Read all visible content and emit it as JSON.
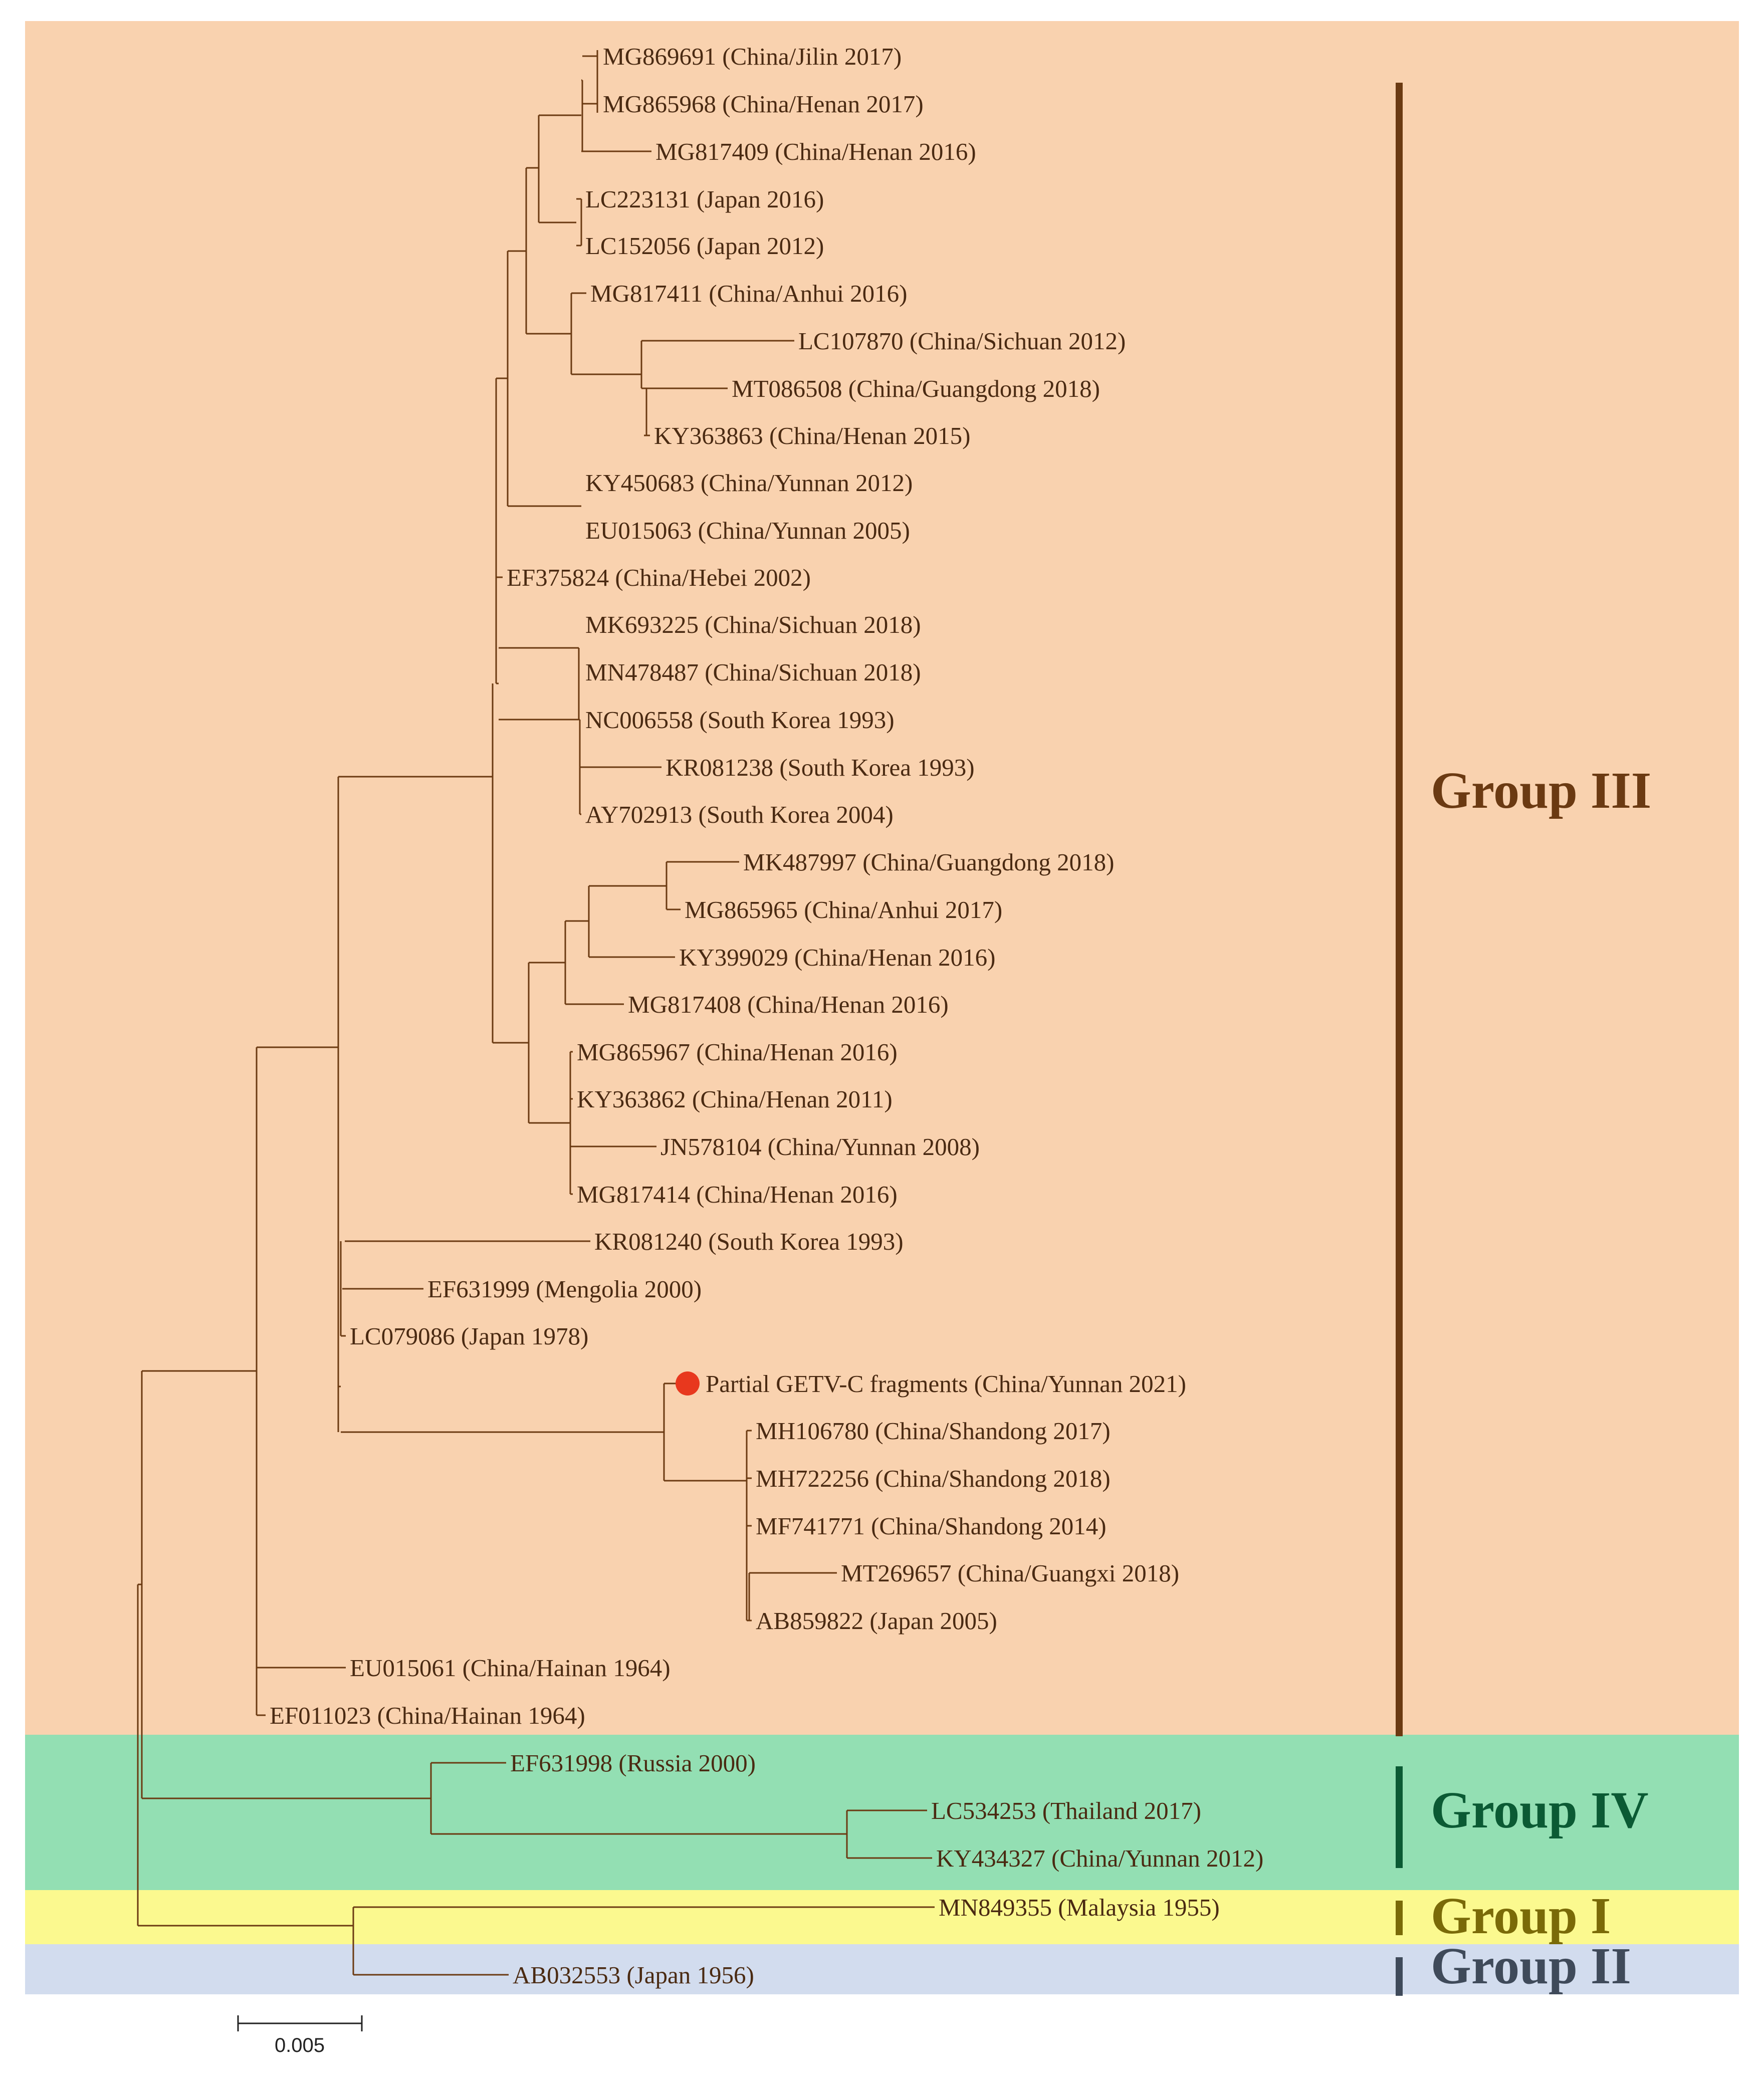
{
  "colors": {
    "group3_bg": "#f9d2af",
    "group4_bg": "#93dfb3",
    "group1_bg": "#fbf98f",
    "group2_bg": "#d2dcee",
    "group3_line": "#6b3a12",
    "group4_line": "#0b5a34",
    "group1_line": "#7a6a08",
    "group2_line": "#3f4a5a",
    "tree_line": "#6b3a12",
    "marker": "#e8381e"
  },
  "tree": {
    "leaves": [
      "MG869691 (China/Jilin 2017)",
      "MG865968 (China/Henan 2017)",
      "MG817409 (China/Henan 2016)",
      "LC223131 (Japan 2016)",
      "LC152056 (Japan 2012)",
      "MG817411 (China/Anhui 2016)",
      "LC107870 (China/Sichuan 2012)",
      "MT086508 (China/Guangdong 2018)",
      "KY363863 (China/Henan 2015)",
      "KY450683 (China/Yunnan 2012)",
      "EU015063 (China/Yunnan 2005)",
      "EF375824 (China/Hebei 2002)",
      "MK693225 (China/Sichuan 2018)",
      "MN478487 (China/Sichuan 2018)",
      "NC006558 (South Korea 1993)",
      "KR081238 (South Korea 1993)",
      "AY702913 (South Korea 2004)",
      "MK487997 (China/Guangdong 2018)",
      "MG865965 (China/Anhui 2017)",
      "KY399029 (China/Henan 2016)",
      "MG817408 (China/Henan 2016)",
      "MG865967 (China/Henan 2016)",
      "KY363862 (China/Henan 2011)",
      "JN578104 (China/Yunnan 2008)",
      "MG817414 (China/Henan 2016)",
      "KR081240 (South Korea 1993)",
      "EF631999 (Mengolia 2000)",
      "LC079086 (Japan 1978)",
      "Partial GETV-C  fragments (China/Yunnan 2021)",
      "MH106780 (China/Shandong 2017)",
      "MH722256 (China/Shandong 2018)",
      "MF741771 (China/Shandong 2014)",
      "MT269657 (China/Guangxi 2018)",
      "AB859822 (Japan 2005)",
      "EU015061 (China/Hainan 1964)",
      "EF011023 (China/Hainan 1964)",
      "EF631998 (Russia 2000)",
      "LC534253 (Thailand 2017)",
      "KY434327 (China/Yunnan 2012)",
      "MN849355 (Malaysia 1955)",
      "AB032553 (Japan 1956)"
    ],
    "highlighted_leaf": "Partial GETV-C  fragments (China/Yunnan 2021)"
  },
  "groups": [
    {
      "id": "group-3",
      "label": "Group III"
    },
    {
      "id": "group-4",
      "label": "Group IV"
    },
    {
      "id": "group-1",
      "label": "Group I"
    },
    {
      "id": "group-2",
      "label": "Group II"
    }
  ],
  "scale_bar": {
    "label": "0.005"
  }
}
